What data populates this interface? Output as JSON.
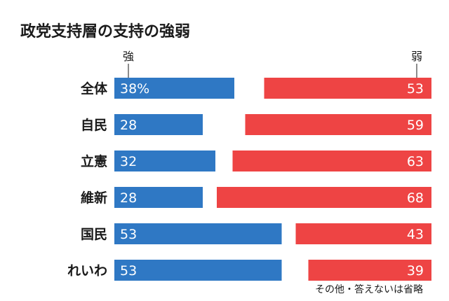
{
  "chart_data": {
    "type": "bar",
    "title": "政党支持層の支持の強弱",
    "left_header": "強",
    "right_header": "弱",
    "note": "その他・答えないは省略",
    "categories": [
      "全体",
      "自民",
      "立憲",
      "維新",
      "国民",
      "れいわ"
    ],
    "series": [
      {
        "name": "強",
        "values": [
          38,
          28,
          32,
          28,
          53,
          53
        ],
        "labels": [
          "38%",
          "28",
          "32",
          "28",
          "53",
          "53"
        ],
        "color": "#2f78c4"
      },
      {
        "name": "弱",
        "values": [
          53,
          59,
          63,
          68,
          43,
          39
        ],
        "labels": [
          "53",
          "59",
          "63",
          "68",
          "43",
          "39"
        ],
        "color": "#ee4444"
      }
    ],
    "xlim": [
      0,
      100
    ]
  }
}
